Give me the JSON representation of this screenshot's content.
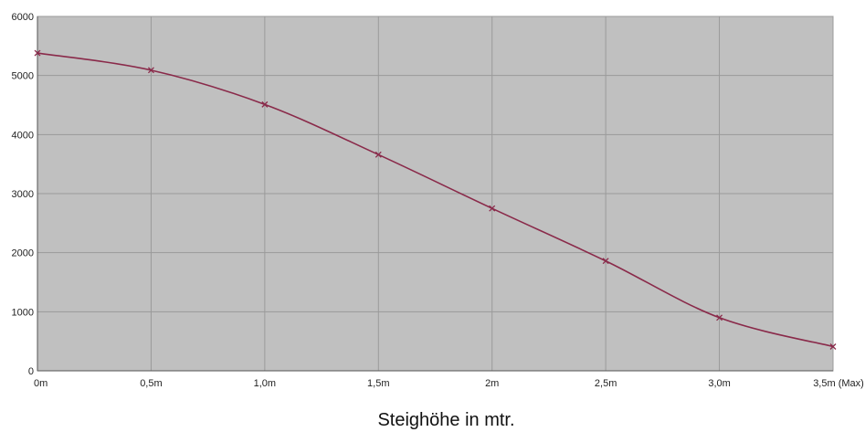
{
  "chart_data": {
    "type": "line",
    "title": "",
    "xlabel": "Steighöhe in mtr.",
    "ylabel": "",
    "categories": [
      "0m",
      "0,5m",
      "1,0m",
      "1,5m",
      "2m",
      "2,5m",
      "3,0m",
      "3,5m (Max)"
    ],
    "x": [
      0,
      0.5,
      1.0,
      1.5,
      2.0,
      2.5,
      3.0,
      3.5
    ],
    "series": [
      {
        "values": [
          5380,
          5090,
          4510,
          3660,
          2750,
          1860,
          900,
          410
        ]
      }
    ],
    "xlim": [
      0,
      3.5
    ],
    "ylim": [
      0,
      6000
    ],
    "yticks": [
      0,
      1000,
      2000,
      3000,
      4000,
      5000,
      6000
    ],
    "ytick_labels": [
      "0",
      "1000",
      "2000",
      "3000",
      "4000",
      "5000",
      "6000"
    ],
    "grid": true,
    "legend": "none",
    "marker": "x",
    "colors": {
      "plot_background": "#c0c0c0",
      "grid": "#9a9a9a",
      "line": "#8a2a4a"
    }
  }
}
